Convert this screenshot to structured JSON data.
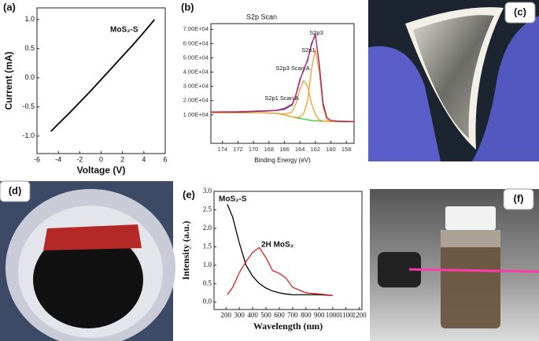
{
  "chart_data": [
    {
      "type": "line",
      "panel_label": "(a)",
      "xlabel": "Voltage (V)",
      "ylabel": "Current (mA)",
      "annotations": [
        "MoS₂-S"
      ],
      "x": [
        -4.7,
        -4,
        -3,
        -2,
        -1,
        0,
        1,
        2,
        3,
        4,
        5
      ],
      "values": [
        -0.92,
        -0.79,
        -0.61,
        -0.42,
        -0.23,
        -0.03,
        0.17,
        0.37,
        0.57,
        0.78,
        1.0
      ],
      "color": "#000000",
      "xlim": [
        -6,
        6
      ],
      "xticks": [
        -6,
        -4,
        -2,
        0,
        2,
        4,
        6
      ],
      "ylim": [
        -1.3,
        1.2
      ],
      "yticks": [
        {
          "value": -1,
          "label": "-1.0"
        },
        -0.5,
        {
          "value": 0,
          "label": "0.0"
        },
        0.5,
        {
          "value": 1,
          "label": "1.0"
        }
      ]
    },
    {
      "type": "line",
      "panel_label": "(b)",
      "title": "S2p Scan",
      "xlabel": "Binding Energy (eV)",
      "annotations": [
        "S2p3",
        "S2p1",
        "S2p3 Scan A",
        "S2p1 Scan A"
      ],
      "x": [
        175.5,
        172,
        169,
        167,
        166,
        165,
        164.5,
        164,
        163.5,
        163,
        162.5,
        162,
        161.5,
        161,
        160.5,
        160,
        159,
        157
      ],
      "series": [
        {
          "color": "#33cc33",
          "values": [
            11500,
            11500,
            11500,
            11000,
            10000,
            8500,
            8000,
            7500,
            7000,
            6500,
            6000,
            5800,
            5600,
            5500,
            5400,
            5300,
            5200,
            5000
          ]
        },
        {
          "color": "#f0a030",
          "values": [
            11500,
            11500,
            11500,
            11000,
            10000,
            8500,
            8200,
            8500,
            11000,
            20000,
            42000,
            56000,
            40000,
            15000,
            6500,
            5400,
            5200,
            5000
          ]
        },
        {
          "color": "#f0a030",
          "values": [
            11500,
            11500,
            11500,
            11000,
            10500,
            12000,
            18000,
            28000,
            34000,
            30000,
            18000,
            10000,
            6500,
            5600,
            5400,
            5300,
            5200,
            5000
          ]
        },
        {
          "color": "#1a1aa0",
          "values": [
            12000,
            12000,
            12500,
            13000,
            14000,
            17000,
            24000,
            34000,
            42000,
            48000,
            60000,
            66000,
            46000,
            18000,
            8000,
            6000,
            5500,
            5200
          ]
        },
        {
          "color": "#c0306a",
          "values": [
            12000,
            12200,
            12800,
            13200,
            14500,
            17500,
            24500,
            35000,
            41000,
            49000,
            59000,
            67000,
            45000,
            17000,
            8000,
            6000,
            5600,
            5300
          ]
        }
      ],
      "xlim": [
        175.5,
        157
      ],
      "xticks": [
        174,
        172,
        170,
        168,
        166,
        164,
        162,
        160,
        158
      ],
      "ylim": [
        -10000,
        74000
      ],
      "yticks": [
        {
          "value": 10000,
          "label": "1.00E+04"
        },
        {
          "value": 20000,
          "label": "2.00E+04"
        },
        {
          "value": 30000,
          "label": "3.00E+04"
        },
        {
          "value": 40000,
          "label": "4.00E+04"
        },
        {
          "value": 50000,
          "label": "5.00E+04"
        },
        {
          "value": 60000,
          "label": "6.00E+04"
        },
        {
          "value": 70000,
          "label": "7.00E+04"
        }
      ]
    },
    {
      "type": "line",
      "panel_label": "(e)",
      "xlabel": "Wavelength (nm)",
      "ylabel": "Intensity (a.u.)",
      "x": [
        210,
        250,
        300,
        350,
        400,
        450,
        500,
        550,
        600,
        650,
        700,
        800,
        900,
        1000
      ],
      "series": [
        {
          "name": "MoS₂-S",
          "color": "#000000",
          "values": [
            2.65,
            2.3,
            1.6,
            1.0,
            0.7,
            0.5,
            0.38,
            0.3,
            0.25,
            0.22,
            0.2,
            0.2,
            0.2,
            0.18
          ]
        },
        {
          "name": "2H MoS₂",
          "color": "#d42020",
          "values": [
            0.2,
            0.4,
            0.8,
            1.1,
            1.35,
            1.48,
            1.2,
            0.85,
            0.78,
            0.65,
            0.4,
            0.25,
            0.22,
            0.18
          ]
        }
      ],
      "xlim": [
        110,
        1220
      ],
      "xticks": [
        200,
        300,
        400,
        500,
        600,
        700,
        800,
        900,
        1000,
        1100,
        1200
      ],
      "ylim": [
        -0.2,
        3.0
      ],
      "yticks": [
        {
          "value": 0,
          "label": "0.0"
        },
        0.5,
        {
          "value": 1,
          "label": "1.0"
        },
        1.5,
        {
          "value": 2,
          "label": "2.0"
        },
        2.5,
        {
          "value": 3,
          "label": "3.0"
        }
      ]
    }
  ],
  "photo_labels": [
    "(c)",
    "(d)",
    "(f)"
  ]
}
